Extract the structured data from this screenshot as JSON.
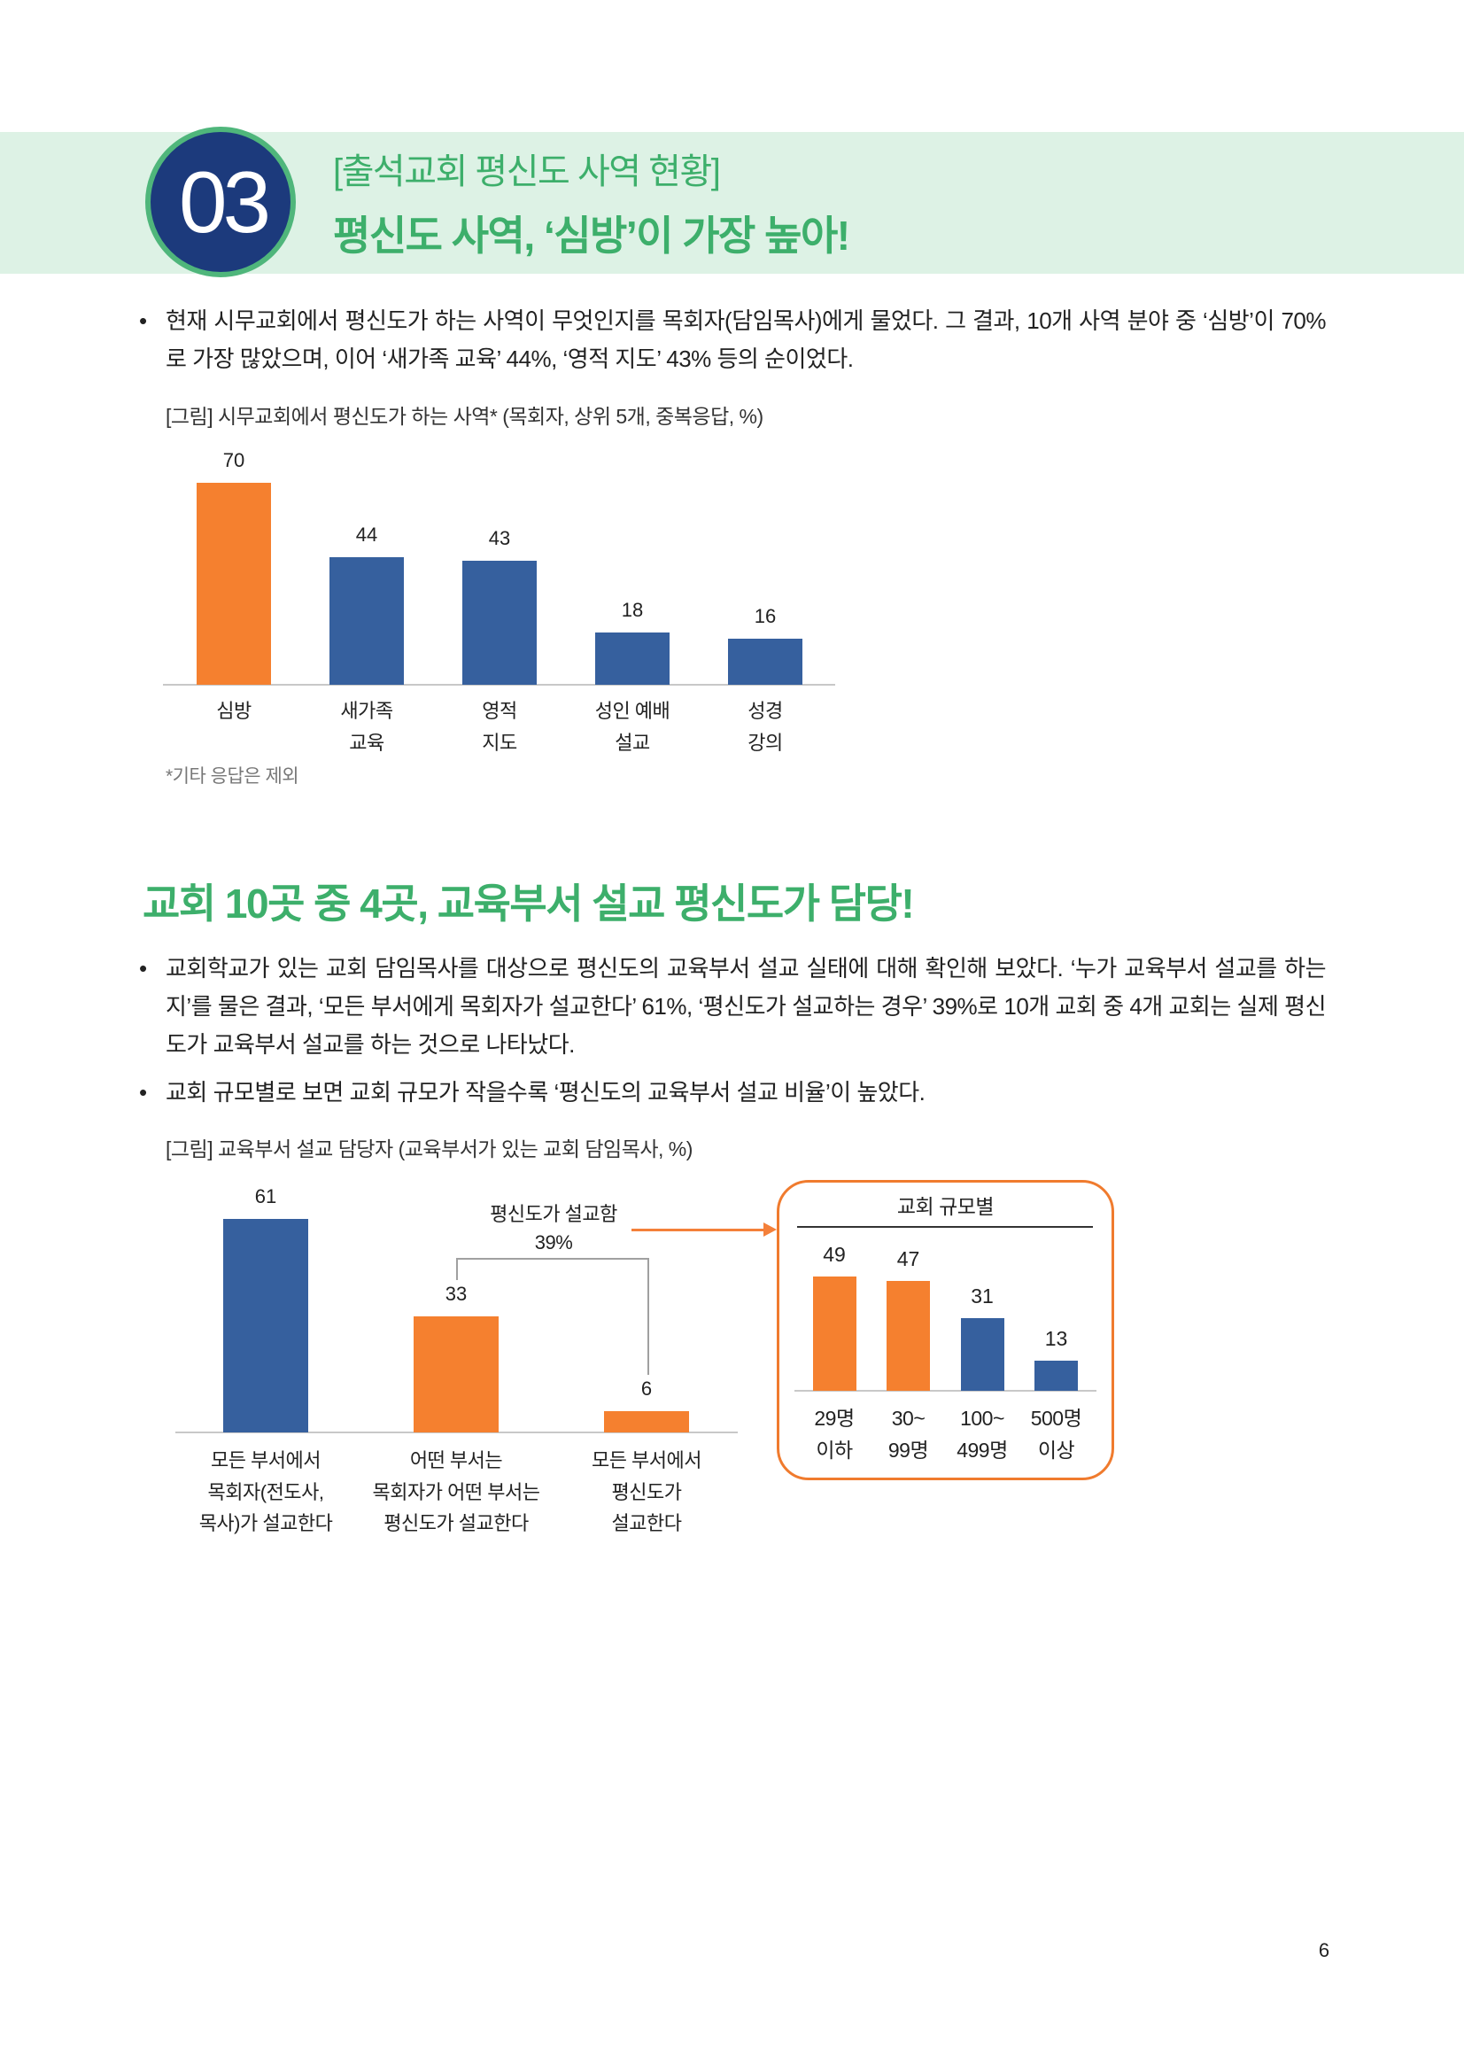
{
  "header": {
    "number": "03",
    "subtitle": "[출석교회 평신도 사역 현황]",
    "title": "평신도 사역, ‘심방’이 가장 높아!"
  },
  "bullet_glyph": "•",
  "section1": {
    "bullets": [
      "현재 시무교회에서 평신도가 하는 사역이 무엇인지를 목회자(담임목사)에게 물었다. 그 결과, 10개 사역 분야 중 ‘심방’이 70%로 가장 많았으며, 이어 ‘새가족 교육’ 44%, ‘영적 지도’ 43% 등의 순이었다."
    ]
  },
  "section2": {
    "title": "교회 10곳 중 4곳, 교육부서 설교 평신도가 담당!",
    "bullets": [
      "교회학교가 있는 교회 담임목사를 대상으로 평신도의 교육부서 설교 실태에 대해 확인해 보았다. ‘누가 교육부서 설교를 하는지’를 물은 결과, ‘모든 부서에게 목회자가 설교한다’ 61%, ‘평신도가 설교하는 경우’ 39%로 10개 교회 중 4개 교회는 실제 평신도가 교육부서 설교를 하는 것으로 나타났다.",
      "교회 규모별로 보면 교회 규모가 작을수록 ‘평신도의 교육부서 설교 비율’이 높았다."
    ]
  },
  "page_number": "6",
  "colors": {
    "green": "#3daf6b",
    "band": "#ddf2e5",
    "navy": "#1c3a7c",
    "orange": "#f5802f",
    "blue": "#36609e"
  },
  "chart_data": [
    {
      "type": "bar",
      "title": "[그림] 시무교회에서 평신도가 하는 사역* (목회자, 상위 5개, 중복응답, %)",
      "categories": [
        "심방",
        "새가족\n교육",
        "영적\n지도",
        "성인 예배\n설교",
        "성경\n강의"
      ],
      "values": [
        70,
        44,
        43,
        18,
        16
      ],
      "bar_colors": [
        "#f5802f",
        "#36609e",
        "#36609e",
        "#36609e",
        "#36609e"
      ],
      "ylim": [
        0,
        80
      ],
      "note": "*기타 응답은 제외"
    },
    {
      "type": "bar",
      "title": "[그림] 교육부서 설교 담당자 (교육부서가 있는 교회 담임목사, %)",
      "categories": [
        "모든 부서에서\n목회자(전도사,\n목사)가 설교한다",
        "어떤 부서는\n목회자가 어떤 부서는\n평신도가 설교한다",
        "모든 부서에서\n평신도가\n설교한다"
      ],
      "values": [
        61,
        33,
        6
      ],
      "bar_colors": [
        "#36609e",
        "#f5802f",
        "#f5802f"
      ],
      "ylim": [
        0,
        70
      ],
      "annotation": {
        "label": "평신도가 설교함",
        "value": "39%"
      }
    },
    {
      "type": "bar",
      "title": "교회 규모별",
      "categories": [
        "29명\n이하",
        "30~\n99명",
        "100~\n499명",
        "500명\n이상"
      ],
      "values": [
        49,
        47,
        31,
        13
      ],
      "bar_colors": [
        "#f5802f",
        "#f5802f",
        "#36609e",
        "#36609e"
      ],
      "ylim": [
        0,
        60
      ]
    }
  ]
}
